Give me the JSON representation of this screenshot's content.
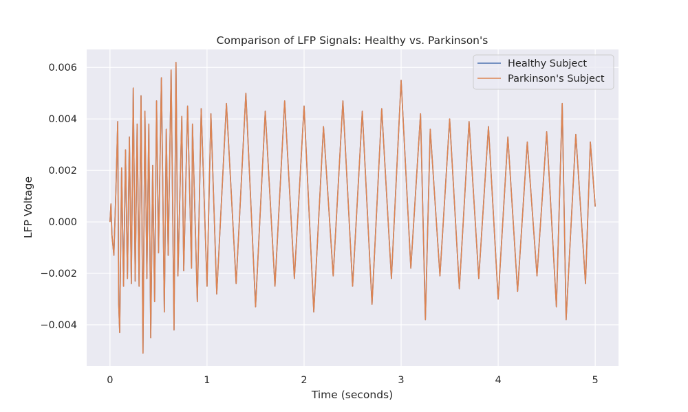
{
  "chart_data": {
    "type": "line",
    "title": "Comparison of LFP Signals: Healthy vs. Parkinson's",
    "xlabel": "Time (seconds)",
    "ylabel": "LFP Voltage",
    "xlim": [
      -0.24,
      5.24
    ],
    "ylim": [
      -0.0056,
      0.0067
    ],
    "x_ticks": [
      0,
      1,
      2,
      3,
      4,
      5
    ],
    "x_tick_labels": [
      "0",
      "1",
      "2",
      "3",
      "4",
      "5"
    ],
    "y_ticks": [
      -0.004,
      -0.002,
      0.0,
      0.002,
      0.004,
      0.006
    ],
    "y_tick_labels": [
      "−0.004",
      "−0.002",
      "0.000",
      "0.002",
      "0.004",
      "0.006"
    ],
    "grid": true,
    "legend_position": "top-right",
    "series": [
      {
        "name": "Healthy Subject",
        "color": "#4c72b0",
        "x": [
          0.0,
          0.01,
          0.02,
          0.04,
          0.06,
          0.08,
          0.09,
          0.1,
          0.12,
          0.14,
          0.16,
          0.18,
          0.2,
          0.22,
          0.24,
          0.26,
          0.28,
          0.3,
          0.32,
          0.34,
          0.36,
          0.38,
          0.4,
          0.42,
          0.44,
          0.46,
          0.48,
          0.5,
          0.53,
          0.56,
          0.58,
          0.6,
          0.63,
          0.66,
          0.68,
          0.7,
          0.74,
          0.76,
          0.8,
          0.84,
          0.85,
          0.9,
          0.94,
          1.0,
          1.04,
          1.1,
          1.2,
          1.3,
          1.4,
          1.5,
          1.6,
          1.7,
          1.8,
          1.9,
          2.0,
          2.1,
          2.2,
          2.3,
          2.4,
          2.5,
          2.6,
          2.7,
          2.8,
          2.9,
          3.0,
          3.1,
          3.2,
          3.25,
          3.3,
          3.4,
          3.5,
          3.6,
          3.7,
          3.8,
          3.9,
          4.0,
          4.1,
          4.2,
          4.3,
          4.4,
          4.5,
          4.6,
          4.66,
          4.7,
          4.8,
          4.9,
          4.95,
          5.0
        ],
        "y": [
          0.0,
          0.0007,
          -0.0005,
          -0.0013,
          0.0011,
          0.0039,
          -0.0032,
          -0.0043,
          0.0021,
          -0.0025,
          0.0028,
          -0.0022,
          0.0033,
          -0.0024,
          0.0052,
          -0.0023,
          0.0038,
          -0.0025,
          0.0049,
          -0.0051,
          0.0043,
          -0.0022,
          0.0038,
          -0.0045,
          0.0022,
          -0.0031,
          0.0047,
          -0.0012,
          0.0056,
          -0.0035,
          0.0036,
          -0.0013,
          0.0059,
          -0.0042,
          0.0062,
          -0.0021,
          0.0041,
          -0.0019,
          0.0045,
          -0.0018,
          0.0038,
          -0.0031,
          0.0044,
          -0.0025,
          0.0042,
          -0.0028,
          0.0046,
          -0.0024,
          0.005,
          -0.0033,
          0.0043,
          -0.0025,
          0.0047,
          -0.0022,
          0.0045,
          -0.0035,
          0.0037,
          -0.0021,
          0.0047,
          -0.0025,
          0.0043,
          -0.0032,
          0.0044,
          -0.0022,
          0.0055,
          -0.0018,
          0.0042,
          -0.0038,
          0.0036,
          -0.0021,
          0.004,
          -0.0026,
          0.0039,
          -0.0022,
          0.0037,
          -0.003,
          0.0033,
          -0.0027,
          0.0031,
          -0.0021,
          0.0035,
          -0.0033,
          0.0046,
          -0.0038,
          0.0034,
          -0.0024,
          0.0031,
          0.0006
        ]
      },
      {
        "name": "Parkinson's Subject",
        "color": "#dd8452",
        "x": [
          0.0,
          0.01,
          0.02,
          0.04,
          0.06,
          0.08,
          0.09,
          0.1,
          0.12,
          0.14,
          0.16,
          0.18,
          0.2,
          0.22,
          0.24,
          0.26,
          0.28,
          0.3,
          0.32,
          0.34,
          0.36,
          0.38,
          0.4,
          0.42,
          0.44,
          0.46,
          0.48,
          0.5,
          0.53,
          0.56,
          0.58,
          0.6,
          0.63,
          0.66,
          0.68,
          0.7,
          0.74,
          0.76,
          0.8,
          0.84,
          0.85,
          0.9,
          0.94,
          1.0,
          1.04,
          1.1,
          1.2,
          1.3,
          1.4,
          1.5,
          1.6,
          1.7,
          1.8,
          1.9,
          2.0,
          2.1,
          2.2,
          2.3,
          2.4,
          2.5,
          2.6,
          2.7,
          2.8,
          2.9,
          3.0,
          3.1,
          3.2,
          3.25,
          3.3,
          3.4,
          3.5,
          3.6,
          3.7,
          3.8,
          3.9,
          4.0,
          4.1,
          4.2,
          4.3,
          4.4,
          4.5,
          4.6,
          4.66,
          4.7,
          4.8,
          4.9,
          4.95,
          5.0
        ],
        "y": [
          0.0,
          0.0007,
          -0.0005,
          -0.0013,
          0.0011,
          0.0039,
          -0.0032,
          -0.0043,
          0.0021,
          -0.0025,
          0.0028,
          -0.0022,
          0.0033,
          -0.0024,
          0.0052,
          -0.0023,
          0.0038,
          -0.0025,
          0.0049,
          -0.0051,
          0.0043,
          -0.0022,
          0.0038,
          -0.0045,
          0.0022,
          -0.0031,
          0.0047,
          -0.0012,
          0.0056,
          -0.0035,
          0.0036,
          -0.0013,
          0.0059,
          -0.0042,
          0.0062,
          -0.0021,
          0.0041,
          -0.0019,
          0.0045,
          -0.0018,
          0.0038,
          -0.0031,
          0.0044,
          -0.0025,
          0.0042,
          -0.0028,
          0.0046,
          -0.0024,
          0.005,
          -0.0033,
          0.0043,
          -0.0025,
          0.0047,
          -0.0022,
          0.0045,
          -0.0035,
          0.0037,
          -0.0021,
          0.0047,
          -0.0025,
          0.0043,
          -0.0032,
          0.0044,
          -0.0022,
          0.0055,
          -0.0018,
          0.0042,
          -0.0038,
          0.0036,
          -0.0021,
          0.004,
          -0.0026,
          0.0039,
          -0.0022,
          0.0037,
          -0.003,
          0.0033,
          -0.0027,
          0.0031,
          -0.0021,
          0.0035,
          -0.0033,
          0.0046,
          -0.0038,
          0.0034,
          -0.0024,
          0.0031,
          0.0006
        ]
      }
    ]
  },
  "style": {
    "plot_background": "#eaeaf2",
    "grid_color": "#ffffff",
    "text_color": "#262626"
  }
}
